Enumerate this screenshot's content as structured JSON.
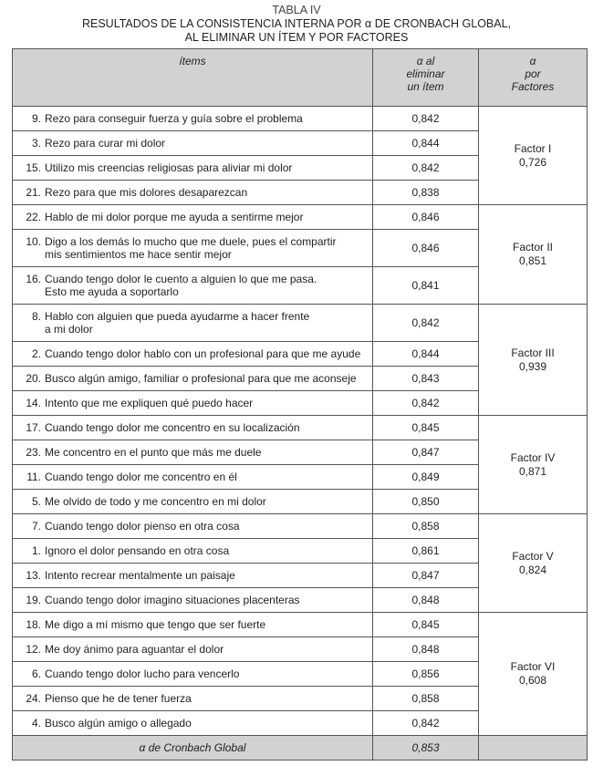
{
  "caption": {
    "label": "TABLA IV",
    "line1": "RESULTADOS DE LA CONSISTENCIA INTERNA POR α DE CRONBACH GLOBAL,",
    "line2": "AL ELIMINAR UN ÍTEM Y POR FACTORES"
  },
  "headers": {
    "items": "ítems",
    "alpha_item": [
      "α al",
      "eliminar",
      "un ítem"
    ],
    "alpha_factor": [
      "α",
      "por",
      "Factores"
    ]
  },
  "groups": [
    {
      "factor": "Factor I",
      "alpha": "0,726",
      "items": [
        {
          "num": "9.",
          "text": [
            "Rezo para conseguir fuerza y guía sobre el problema"
          ],
          "alpha": "0,842"
        },
        {
          "num": "3.",
          "text": [
            "Rezo para curar mi dolor"
          ],
          "alpha": "0,844"
        },
        {
          "num": "15.",
          "text": [
            "Utilizo mis creencias religiosas para aliviar mi dolor"
          ],
          "alpha": "0,842"
        },
        {
          "num": "21.",
          "text": [
            "Rezo para que mis dolores desaparezcan"
          ],
          "alpha": "0,838"
        }
      ]
    },
    {
      "factor": "Factor II",
      "alpha": "0,851",
      "items": [
        {
          "num": "22.",
          "text": [
            "Hablo de mi dolor porque me ayuda a sentirme mejor"
          ],
          "alpha": "0,846"
        },
        {
          "num": "10.",
          "text": [
            "Digo a los demás lo mucho que me duele, pues el compartir",
            "mis sentimientos me hace sentir mejor"
          ],
          "alpha": "0,846"
        },
        {
          "num": "16.",
          "text": [
            "Cuando tengo dolor le cuento a alguien lo que me pasa.",
            "Esto me ayuda a soportarlo"
          ],
          "alpha": "0,841"
        }
      ]
    },
    {
      "factor": "Factor III",
      "alpha": "0,939",
      "items": [
        {
          "num": "8.",
          "text": [
            "Hablo con alguien que pueda ayudarme a hacer frente",
            "a mi dolor"
          ],
          "alpha": "0,842"
        },
        {
          "num": "2.",
          "text": [
            "Cuando tengo dolor hablo con un profesional para que me ayude"
          ],
          "alpha": "0,844"
        },
        {
          "num": "20.",
          "text": [
            "Busco algún amigo, familiar o profesional para que me aconseje"
          ],
          "alpha": "0,843"
        },
        {
          "num": "14.",
          "text": [
            "Intento que me expliquen qué puedo hacer"
          ],
          "alpha": "0,842"
        }
      ]
    },
    {
      "factor": "Factor IV",
      "alpha": "0,871",
      "items": [
        {
          "num": "17.",
          "text": [
            "Cuando tengo dolor me concentro en su localización"
          ],
          "alpha": "0,845"
        },
        {
          "num": "23.",
          "text": [
            "Me concentro en el punto que más me duele"
          ],
          "alpha": "0,847"
        },
        {
          "num": "11.",
          "text": [
            "Cuando tengo dolor me concentro en él"
          ],
          "alpha": "0,849"
        },
        {
          "num": "5.",
          "text": [
            "Me olvido de todo y me concentro en mi dolor"
          ],
          "alpha": "0,850"
        }
      ]
    },
    {
      "factor": "Factor V",
      "alpha": "0,824",
      "items": [
        {
          "num": "7.",
          "text": [
            "Cuando tengo dolor pienso en otra cosa"
          ],
          "alpha": "0,858"
        },
        {
          "num": "1.",
          "text": [
            "Ignoro el dolor pensando en otra cosa"
          ],
          "alpha": "0,861"
        },
        {
          "num": "13.",
          "text": [
            "Intento recrear mentalmente un paisaje"
          ],
          "alpha": "0,847"
        },
        {
          "num": "19.",
          "text": [
            "Cuando tengo dolor imagino situaciones placenteras"
          ],
          "alpha": "0,848"
        }
      ]
    },
    {
      "factor": "Factor VI",
      "alpha": "0,608",
      "items": [
        {
          "num": "18.",
          "text": [
            "Me digo a mí mismo que tengo que ser fuerte"
          ],
          "alpha": "0,845"
        },
        {
          "num": "12.",
          "text": [
            "Me doy ánimo para aguantar el dolor"
          ],
          "alpha": "0,848"
        },
        {
          "num": "6.",
          "text": [
            "Cuando tengo dolor lucho para vencerlo"
          ],
          "alpha": "0,856"
        },
        {
          "num": "24.",
          "text": [
            "Pienso que he de tener fuerza"
          ],
          "alpha": "0,858"
        },
        {
          "num": "4.",
          "text": [
            "Busco algún amigo o allegado"
          ],
          "alpha": "0,842"
        }
      ]
    }
  ],
  "global": {
    "label": "α de Cronbach Global",
    "alpha": "0,853"
  }
}
